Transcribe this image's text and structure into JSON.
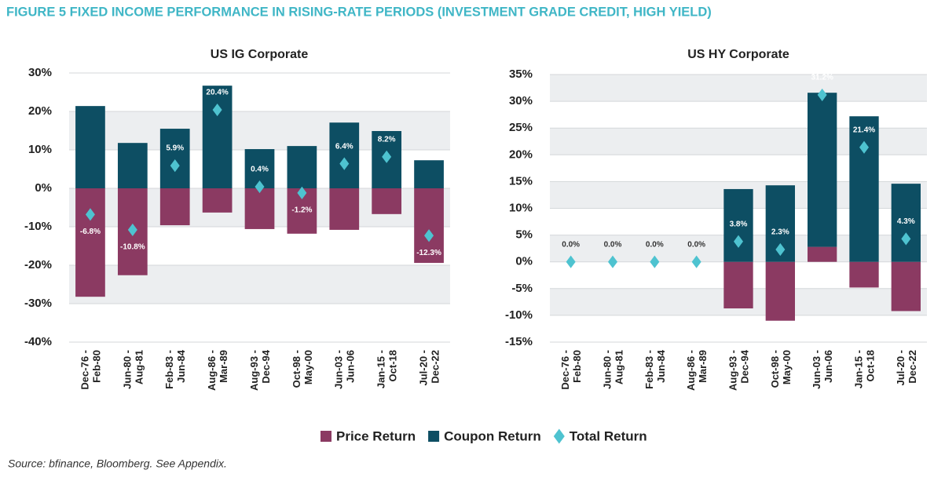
{
  "title": "FIGURE 5 FIXED INCOME PERFORMANCE IN RISING-RATE PERIODS (INVESTMENT GRADE CREDIT, HIGH YIELD)",
  "source": "Source: bfinance, Bloomberg. See Appendix.",
  "chart_data": [
    {
      "type": "bar",
      "stacked": true,
      "title": "US IG Corporate",
      "categories": [
        [
          "Dec-76 -",
          "Feb-80"
        ],
        [
          "Jun-80 -",
          "Aug-81"
        ],
        [
          "Feb-83 -",
          "Jun-84"
        ],
        [
          "Aug-86 -",
          "Mar-89"
        ],
        [
          "Aug-93 -",
          "Dec-94"
        ],
        [
          "Oct-98 -",
          "May-00"
        ],
        [
          "Jun-03 -",
          "Jun-06"
        ],
        [
          "Jan-15 -",
          "Oct-18"
        ],
        [
          "Jul-20 -",
          "Dec-22"
        ]
      ],
      "series": [
        {
          "name": "Price Return",
          "type": "bar",
          "color": "#8b3a62",
          "values": [
            -28.2,
            -22.6,
            -9.6,
            -6.3,
            -10.6,
            -11.8,
            -10.8,
            -6.7,
            -19.4
          ]
        },
        {
          "name": "Coupon Return",
          "type": "bar",
          "color": "#0d4e63",
          "values": [
            21.4,
            11.8,
            15.5,
            26.7,
            10.2,
            11.0,
            17.1,
            14.9,
            7.3
          ]
        },
        {
          "name": "Total Return",
          "type": "diamond",
          "color": "#4ec3d0",
          "values": [
            -6.8,
            -10.8,
            5.9,
            20.4,
            0.4,
            -1.2,
            6.4,
            8.2,
            -12.3
          ],
          "value_labels": [
            "-6.8%",
            "-10.8%",
            "5.9%",
            "20.4%",
            "0.4%",
            "-1.2%",
            "6.4%",
            "8.2%",
            "-12.3%"
          ]
        }
      ],
      "ylim": [
        -40,
        30
      ],
      "yticks": [
        {
          "value": -40,
          "label": "-40%"
        },
        {
          "value": -30,
          "label": "-30%"
        },
        {
          "value": -20,
          "label": "-20%"
        },
        {
          "value": -10,
          "label": "-10%"
        },
        {
          "value": 0,
          "label": "0%"
        },
        {
          "value": 10,
          "label": "10%"
        },
        {
          "value": 20,
          "label": "20%"
        },
        {
          "value": 30,
          "label": "30%"
        }
      ],
      "grid": true
    },
    {
      "type": "bar",
      "stacked": true,
      "title": "US HY Corporate",
      "categories": [
        [
          "Dec-76 -",
          "Feb-80"
        ],
        [
          "Jun-80 -",
          "Aug-81"
        ],
        [
          "Feb-83 -",
          "Jun-84"
        ],
        [
          "Aug-86 -",
          "Mar-89"
        ],
        [
          "Aug-93 -",
          "Dec-94"
        ],
        [
          "Oct-98 -",
          "May-00"
        ],
        [
          "Jun-03 -",
          "Jun-06"
        ],
        [
          "Jan-15 -",
          "Oct-18"
        ],
        [
          "Jul-20 -",
          "Dec-22"
        ]
      ],
      "series": [
        {
          "name": "Price Return",
          "type": "bar",
          "color": "#8b3a62",
          "values": [
            null,
            null,
            null,
            null,
            -8.7,
            -11.0,
            2.8,
            -4.8,
            -9.2
          ]
        },
        {
          "name": "Coupon Return",
          "type": "bar",
          "color": "#0d4e63",
          "values": [
            null,
            null,
            null,
            null,
            13.6,
            14.3,
            28.8,
            27.2,
            14.6
          ]
        },
        {
          "name": "Total Return",
          "type": "diamond",
          "color": "#4ec3d0",
          "values": [
            0,
            0,
            0,
            0,
            3.8,
            2.3,
            31.2,
            21.4,
            4.3
          ],
          "value_labels": [
            "0.0%",
            "0.0%",
            "0.0%",
            "0.0%",
            "3.8%",
            "2.3%",
            "31.2%",
            "21.4%",
            "4.3%"
          ]
        }
      ],
      "ylim": [
        -15,
        35
      ],
      "yticks": [
        {
          "value": -15,
          "label": "-15%"
        },
        {
          "value": -10,
          "label": "-10%"
        },
        {
          "value": -5,
          "label": "-5%"
        },
        {
          "value": 0,
          "label": "0%"
        },
        {
          "value": 5,
          "label": "5%"
        },
        {
          "value": 10,
          "label": "10%"
        },
        {
          "value": 15,
          "label": "15%"
        },
        {
          "value": 20,
          "label": "20%"
        },
        {
          "value": 25,
          "label": "25%"
        },
        {
          "value": 30,
          "label": "30%"
        },
        {
          "value": 35,
          "label": "35%"
        }
      ],
      "grid": true
    }
  ]
}
